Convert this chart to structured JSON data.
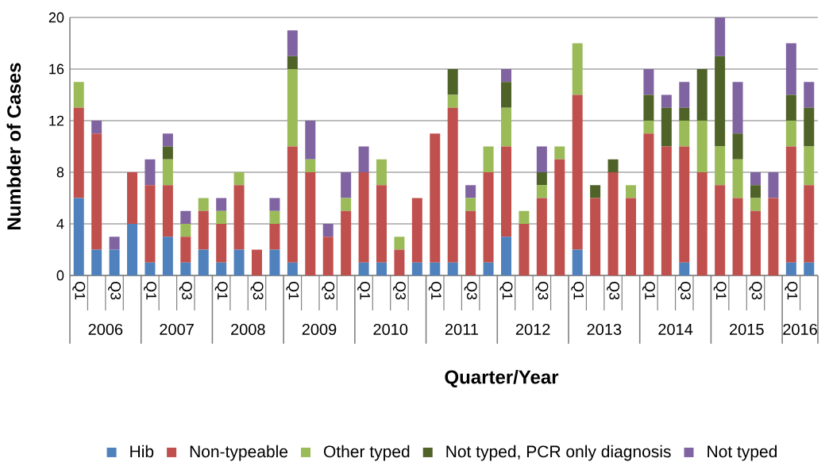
{
  "chart_data": {
    "type": "bar",
    "stacked": true,
    "xlabel": "Quarter/Year",
    "ylabel": "Numbder of Cases",
    "categories": [
      "Q1",
      null,
      "Q3",
      null,
      "Q1",
      null,
      "Q3",
      null,
      "Q1",
      null,
      "Q3",
      null,
      "Q1",
      null,
      "Q3",
      null,
      "Q1",
      null,
      "Q3",
      null,
      "Q1",
      null,
      "Q3",
      null,
      "Q1",
      null,
      "Q3",
      null,
      "Q1",
      null,
      "Q3",
      null,
      "Q1",
      null,
      "Q3",
      null,
      "Q1",
      null,
      "Q3",
      null,
      "Q1",
      null
    ],
    "annotations": [
      "2006",
      "2007",
      "2008",
      "2009",
      "2010",
      "2011",
      "2012",
      "2013",
      "2014",
      "2015",
      "2016"
    ],
    "series": [
      {
        "name": "Hib",
        "color": "#4f81bd",
        "values": [
          6,
          2,
          2,
          4,
          1,
          3,
          1,
          2,
          1,
          2,
          0,
          2,
          1,
          0,
          0,
          0,
          1,
          1,
          0,
          1,
          1,
          1,
          0,
          1,
          3,
          0,
          0,
          0,
          2,
          0,
          0,
          0,
          0,
          0,
          1,
          0,
          0,
          0,
          0,
          0,
          1,
          1
        ]
      },
      {
        "name": "Non-typeable",
        "color": "#c0504d",
        "values": [
          7,
          9,
          0,
          4,
          6,
          4,
          2,
          3,
          3,
          5,
          2,
          2,
          9,
          8,
          3,
          5,
          7,
          6,
          2,
          5,
          10,
          12,
          5,
          7,
          7,
          4,
          6,
          9,
          12,
          6,
          8,
          6,
          11,
          10,
          9,
          8,
          7,
          6,
          5,
          6,
          9,
          6
        ]
      },
      {
        "name": "Other typed",
        "color": "#9bbb59",
        "values": [
          2,
          0,
          0,
          0,
          0,
          2,
          1,
          1,
          1,
          1,
          0,
          1,
          6,
          1,
          0,
          1,
          0,
          2,
          1,
          0,
          0,
          1,
          1,
          2,
          3,
          1,
          1,
          1,
          4,
          0,
          0,
          1,
          1,
          0,
          2,
          4,
          3,
          3,
          1,
          0,
          2,
          3
        ]
      },
      {
        "name": "Not typed, PCR only diagnosis",
        "color": "#4f6228",
        "values": [
          0,
          0,
          0,
          0,
          0,
          1,
          0,
          0,
          0,
          0,
          0,
          0,
          1,
          0,
          0,
          0,
          0,
          0,
          0,
          0,
          0,
          2,
          0,
          0,
          2,
          0,
          1,
          0,
          0,
          1,
          1,
          0,
          2,
          3,
          1,
          4,
          7,
          2,
          1,
          0,
          2,
          3
        ]
      },
      {
        "name": "Not typed",
        "color": "#8064a2",
        "values": [
          0,
          1,
          1,
          0,
          2,
          1,
          1,
          0,
          1,
          0,
          0,
          1,
          2,
          3,
          1,
          2,
          2,
          0,
          0,
          0,
          0,
          0,
          1,
          0,
          1,
          0,
          2,
          0,
          0,
          0,
          0,
          0,
          2,
          1,
          2,
          0,
          3,
          4,
          1,
          2,
          4,
          2
        ]
      }
    ],
    "ylim": [
      0,
      20
    ],
    "yticks": [
      0,
      4,
      8,
      12,
      16,
      20
    ],
    "grid": "y",
    "legend": "bottom"
  }
}
